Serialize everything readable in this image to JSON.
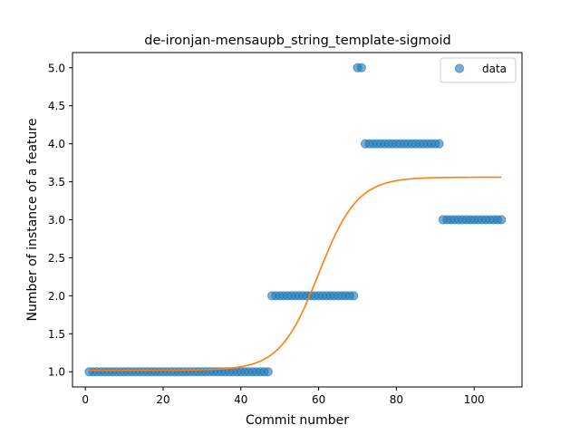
{
  "chart_data": {
    "type": "scatter",
    "title": "de-ironjan-mensaupb_string_template-sigmoid",
    "xlabel": "Commit number",
    "ylabel": "Number of instance of a feature",
    "xlim": [
      -3.3,
      112.3
    ],
    "ylim": [
      0.8,
      5.2
    ],
    "xticks": [
      0,
      20,
      40,
      60,
      80,
      100
    ],
    "yticks": [
      1.0,
      1.5,
      2.0,
      2.5,
      3.0,
      3.5,
      4.0,
      4.5,
      5.0
    ],
    "xtick_labels": [
      "0",
      "20",
      "40",
      "60",
      "80",
      "100"
    ],
    "ytick_labels": [
      "1.0",
      "1.5",
      "2.0",
      "2.5",
      "3.0",
      "3.5",
      "4.0",
      "4.5",
      "5.0"
    ],
    "legend": {
      "position": "top-right",
      "entries": [
        "data"
      ]
    },
    "grid": false,
    "colors": {
      "scatter": "#1f77b4",
      "fit_line": "#ff7f0e"
    },
    "series": [
      {
        "name": "data",
        "kind": "scatter",
        "segments": [
          {
            "x_from": 1,
            "x_to": 47,
            "y": 1
          },
          {
            "x_from": 48,
            "x_to": 69,
            "y": 2
          },
          {
            "x_from": 70,
            "x_to": 71,
            "y": 5
          },
          {
            "x_from": 72,
            "x_to": 91,
            "y": 4
          },
          {
            "x_from": 92,
            "x_to": 107,
            "y": 3
          }
        ]
      },
      {
        "kind": "line",
        "model": "sigmoid",
        "params": {
          "L": 2.54,
          "k": 0.2,
          "x0": 60,
          "b": 1.02
        },
        "x_range": [
          1,
          107
        ]
      }
    ]
  }
}
